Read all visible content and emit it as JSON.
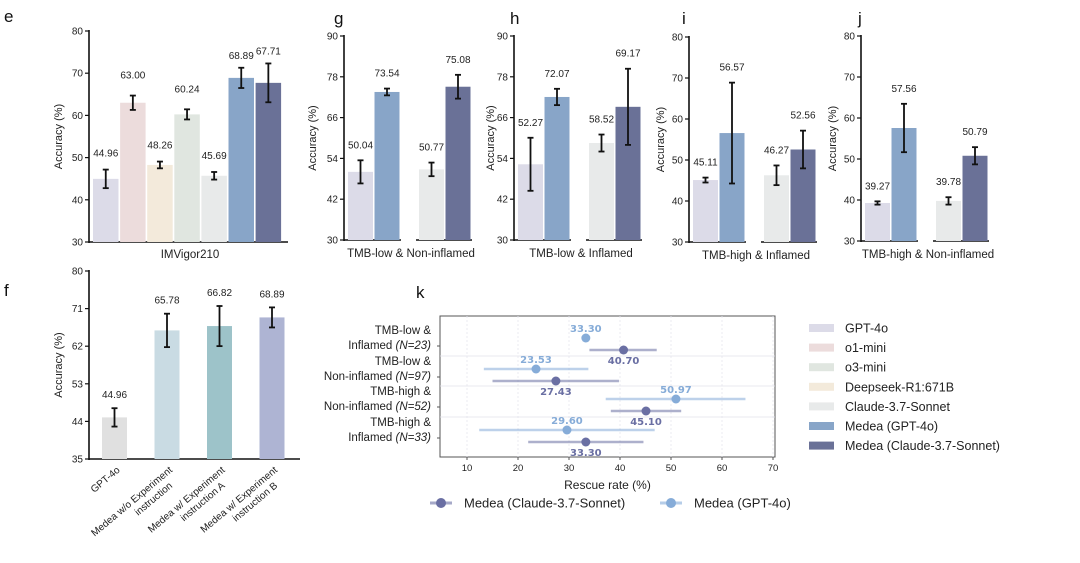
{
  "colors": {
    "GPT-4o": "#dcdbe8",
    "o1-mini": "#ecdcdc",
    "o3-mini": "#e0e6e0",
    "Deepseek-R1:671B": "#f3eadb",
    "Claude-3.7-Sonnet": "#e8eaea",
    "Medea (GPT-4o)": "#88a5c8",
    "Medea (Claude-3.7-Sonnet)": "#6a7197",
    "f_bar1": "#e0e0e0",
    "f_bar2": "#c9dbe3",
    "f_bar3": "#9dc3c9",
    "f_bar4": "#aeb4d3",
    "k_claude": "#6a6fa3",
    "k_gpt": "#86acd8"
  },
  "legend": {
    "items": [
      "GPT-4o",
      "o1-mini",
      "o3-mini",
      "Deepseek-R1:671B",
      "Claude-3.7-Sonnet",
      "Medea (GPT-4o)",
      "Medea (Claude-3.7-Sonnet)"
    ]
  },
  "chart_data": [
    {
      "panel": "e",
      "type": "bar",
      "xlabel": "IMVigor210",
      "ylabel": "Accuracy (%)",
      "ylim": [
        30,
        80
      ],
      "yticks": [
        30,
        40,
        50,
        60,
        70,
        80
      ],
      "categories": [
        "GPT-4o",
        "o1-mini",
        "Deepseek-R1:671B",
        "o3-mini",
        "Claude-3.7-Sonnet",
        "Medea (GPT-4o)",
        "Medea (Claude-3.7-Sonnet)"
      ],
      "values": [
        44.96,
        63.0,
        48.26,
        60.24,
        45.69,
        68.89,
        67.71
      ],
      "labels": [
        "44.96",
        "63.00",
        "48.26",
        "60.24",
        "45.69",
        "68.89",
        "67.71"
      ],
      "errors": [
        2.2,
        1.7,
        0.8,
        1.2,
        0.9,
        2.4,
        4.6
      ]
    },
    {
      "panel": "g",
      "type": "bar",
      "xlabel": "TMB-low & Non-inflamed",
      "ylabel": "Accuracy (%)",
      "ylim": [
        30,
        90
      ],
      "yticks": [
        30,
        42,
        54,
        66,
        78,
        90
      ],
      "groups": [
        {
          "categories": [
            "GPT-4o",
            "Medea (GPT-4o)"
          ],
          "values": [
            50.04,
            73.54
          ],
          "labels": [
            "50.04",
            "73.54"
          ],
          "errors": [
            3.4,
            1.0
          ]
        },
        {
          "categories": [
            "Claude-3.7-Sonnet",
            "Medea (Claude-3.7-Sonnet)"
          ],
          "values": [
            50.77,
            75.08
          ],
          "labels": [
            "50.77",
            "75.08"
          ],
          "errors": [
            2.0,
            3.5
          ]
        }
      ]
    },
    {
      "panel": "h",
      "type": "bar",
      "xlabel": "TMB-low & Inflamed",
      "ylabel": "Accuracy (%)",
      "ylim": [
        30,
        90
      ],
      "yticks": [
        30,
        42,
        54,
        66,
        78,
        90
      ],
      "groups": [
        {
          "categories": [
            "GPT-4o",
            "Medea (GPT-4o)"
          ],
          "values": [
            52.27,
            72.07
          ],
          "labels": [
            "52.27",
            "72.07"
          ],
          "errors": [
            7.8,
            2.4
          ]
        },
        {
          "categories": [
            "Claude-3.7-Sonnet",
            "Medea (Claude-3.7-Sonnet)"
          ],
          "values": [
            58.52,
            69.17
          ],
          "labels": [
            "58.52",
            "69.17"
          ],
          "errors": [
            2.5,
            11.2
          ]
        }
      ]
    },
    {
      "panel": "i",
      "type": "bar",
      "xlabel": "TMB-high & Inflamed",
      "ylabel": "Accuracy (%)",
      "ylim": [
        30,
        80
      ],
      "yticks": [
        30,
        40,
        50,
        60,
        70,
        80
      ],
      "groups": [
        {
          "categories": [
            "GPT-4o",
            "Medea (GPT-4o)"
          ],
          "values": [
            45.11,
            56.57
          ],
          "labels": [
            "45.11",
            "56.57"
          ],
          "errors": [
            0.6,
            12.3
          ]
        },
        {
          "categories": [
            "Claude-3.7-Sonnet",
            "Medea (Claude-3.7-Sonnet)"
          ],
          "values": [
            46.27,
            52.56
          ],
          "labels": [
            "46.27",
            "52.56"
          ],
          "errors": [
            2.4,
            4.6
          ]
        }
      ]
    },
    {
      "panel": "j",
      "type": "bar",
      "xlabel": "TMB-high & Non-inflamed",
      "ylabel": "Accuracy (%)",
      "ylim": [
        30,
        80
      ],
      "yticks": [
        30,
        40,
        50,
        60,
        70,
        80
      ],
      "groups": [
        {
          "categories": [
            "GPT-4o",
            "Medea (GPT-4o)"
          ],
          "values": [
            39.27,
            57.56
          ],
          "labels": [
            "39.27",
            "57.56"
          ],
          "errors": [
            0.4,
            5.9
          ]
        },
        {
          "categories": [
            "Claude-3.7-Sonnet",
            "Medea (Claude-3.7-Sonnet)"
          ],
          "values": [
            39.78,
            50.79
          ],
          "labels": [
            "39.78",
            "50.79"
          ],
          "errors": [
            0.9,
            2.1
          ]
        }
      ]
    },
    {
      "panel": "f",
      "type": "bar",
      "xlabel": "",
      "ylabel": "Accuracy (%)",
      "ylim": [
        35,
        80
      ],
      "yticks": [
        35,
        44,
        53,
        62,
        71,
        80
      ],
      "categories": [
        "GPT-4o",
        "Medea w/o Experiment instruction",
        "Medea w/ Experiment instruction A",
        "Medea w/ Experiment instruction B"
      ],
      "category_lines": [
        [
          "GPT-4o"
        ],
        [
          "Medea w/o Experiment",
          "instruction"
        ],
        [
          "Medea w/ Experiment",
          "instruction A"
        ],
        [
          "Medea w/ Experiment",
          "instruction B"
        ]
      ],
      "values": [
        44.96,
        65.78,
        66.82,
        68.89
      ],
      "labels": [
        "44.96",
        "65.78",
        "66.82",
        "68.89"
      ],
      "errors": [
        2.2,
        4.0,
        4.8,
        2.4
      ]
    },
    {
      "panel": "k",
      "type": "scatter",
      "xlabel": "Rescue rate (%)",
      "xlim": [
        5,
        72
      ],
      "xticks": [
        10,
        20,
        30,
        40,
        50,
        60,
        70
      ],
      "grid": true,
      "categories": [
        {
          "line1": "TMB-low &",
          "line2": "Inflamed",
          "n": "(N=23)"
        },
        {
          "line1": "TMB-low &",
          "line2": "Non-inflamed",
          "n": "(N=97)"
        },
        {
          "line1": "TMB-high &",
          "line2": "Non-inflamed",
          "n": "(N=52)"
        },
        {
          "line1": "TMB-high &",
          "line2": "Inflamed",
          "n": "(N=33)"
        }
      ],
      "series": [
        {
          "name": "Medea (GPT-4o)",
          "values": [
            33.3,
            23.53,
            50.97,
            29.6
          ],
          "labels": [
            "33.30",
            "23.53",
            "50.97",
            "29.60"
          ],
          "ci": [
            [
              33.3,
              33.3
            ],
            [
              13.3,
              33.8
            ],
            [
              37.2,
              64.6
            ],
            [
              12.4,
              46.8
            ]
          ]
        },
        {
          "name": "Medea (Claude-3.7-Sonnet)",
          "values": [
            40.7,
            27.43,
            45.1,
            33.3
          ],
          "labels": [
            "40.70",
            "27.43",
            "45.10",
            "33.30"
          ],
          "ci": [
            [
              34.0,
              47.2
            ],
            [
              15.0,
              39.8
            ],
            [
              38.2,
              52.0
            ],
            [
              22.0,
              44.6
            ]
          ]
        }
      ],
      "legend": [
        "Medea (Claude-3.7-Sonnet)",
        "Medea (GPT-4o)"
      ],
      "legend_position": "bottom"
    }
  ]
}
